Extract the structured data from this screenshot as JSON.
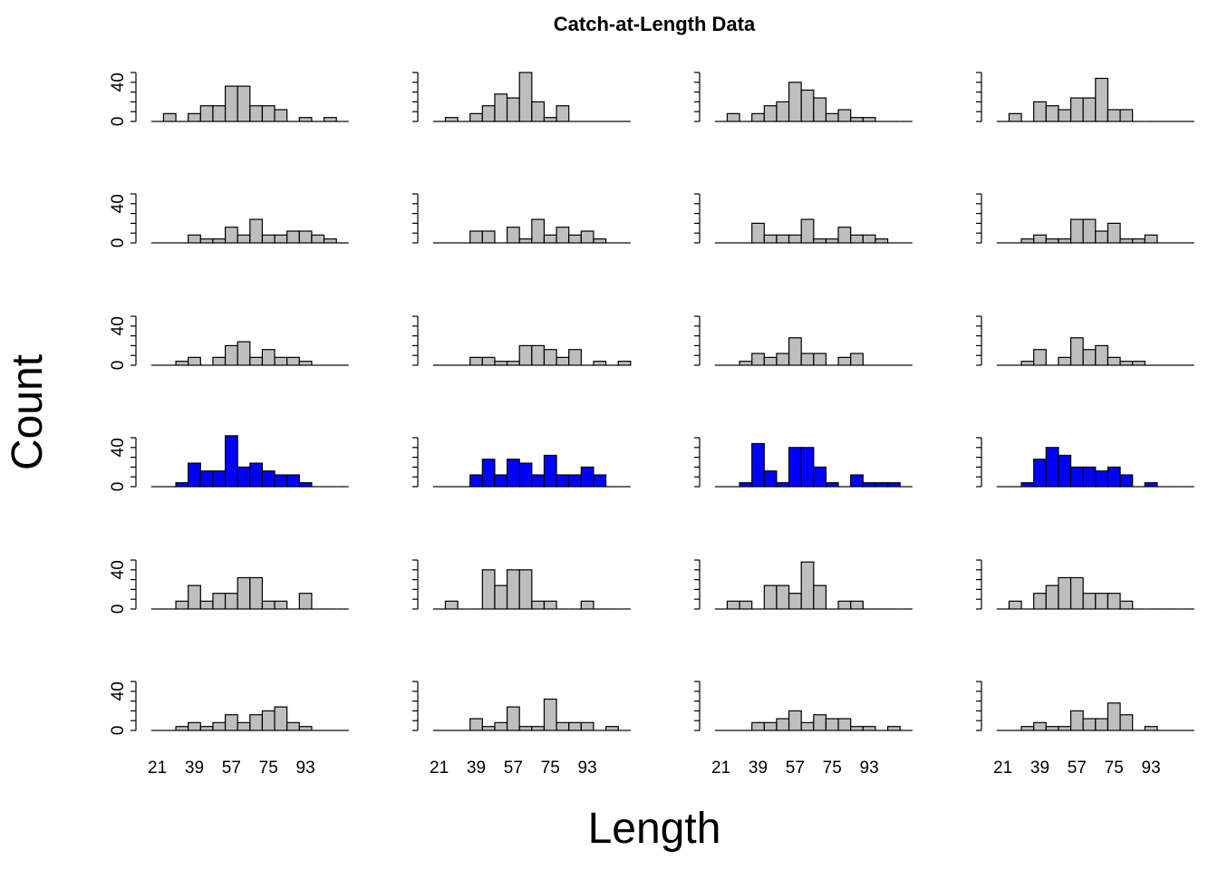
{
  "title": "Catch-at-Length Data",
  "xlabel": "Length",
  "ylabel": "Count",
  "colors": {
    "default_bar": "#bebebe",
    "highlight_bar": "#0000ff",
    "stroke": "#000000"
  },
  "chart_data": {
    "type": "bar",
    "title": "Catch-at-Length Data",
    "xlabel": "Length",
    "ylabel": "Count",
    "layout": {
      "rows": 6,
      "cols": 4
    },
    "highlight_row": 4,
    "categories": [
      15,
      18,
      21,
      24,
      27,
      30,
      33,
      36,
      39,
      42,
      45,
      48,
      51,
      54,
      57,
      60,
      63,
      66,
      69,
      72,
      75,
      78,
      81,
      84,
      87,
      90,
      93,
      96,
      99,
      102,
      105,
      108,
      111
    ],
    "xtick_labels": [
      "21",
      "39",
      "57",
      "75",
      "93"
    ],
    "bin_width": 6,
    "bins_start": 18,
    "bins": [
      21,
      27,
      33,
      39,
      45,
      51,
      57,
      63,
      69,
      75,
      81,
      87,
      93,
      99,
      105,
      111
    ],
    "ytick_labels": [
      "0",
      "40"
    ],
    "ylim": [
      0,
      50
    ],
    "panels": [
      {
        "row": 1,
        "col": 1,
        "values": [
          0,
          8,
          0,
          8,
          16,
          16,
          36,
          36,
          16,
          16,
          12,
          0,
          4,
          0,
          4,
          0
        ]
      },
      {
        "row": 1,
        "col": 2,
        "values": [
          0,
          4,
          0,
          8,
          16,
          28,
          24,
          50,
          20,
          4,
          16,
          0,
          0,
          0,
          0,
          0
        ]
      },
      {
        "row": 1,
        "col": 3,
        "values": [
          0,
          8,
          0,
          8,
          16,
          20,
          40,
          32,
          24,
          8,
          12,
          4,
          4,
          0,
          0,
          0
        ]
      },
      {
        "row": 1,
        "col": 4,
        "values": [
          0,
          8,
          0,
          20,
          16,
          12,
          24,
          24,
          44,
          12,
          12,
          0,
          0,
          0,
          0,
          0
        ]
      },
      {
        "row": 2,
        "col": 1,
        "values": [
          0,
          0,
          0,
          8,
          4,
          4,
          16,
          8,
          24,
          8,
          8,
          12,
          12,
          8,
          4,
          0
        ]
      },
      {
        "row": 2,
        "col": 2,
        "values": [
          0,
          0,
          0,
          12,
          12,
          0,
          16,
          4,
          24,
          8,
          16,
          8,
          12,
          4,
          0,
          0
        ]
      },
      {
        "row": 2,
        "col": 3,
        "values": [
          0,
          0,
          0,
          20,
          8,
          8,
          8,
          24,
          4,
          4,
          16,
          8,
          8,
          4,
          0,
          0
        ]
      },
      {
        "row": 2,
        "col": 4,
        "values": [
          0,
          0,
          4,
          8,
          4,
          4,
          24,
          24,
          12,
          20,
          4,
          4,
          8,
          0,
          0,
          0
        ]
      },
      {
        "row": 3,
        "col": 1,
        "values": [
          0,
          0,
          4,
          8,
          0,
          8,
          20,
          24,
          8,
          16,
          8,
          8,
          4,
          0,
          0,
          0
        ]
      },
      {
        "row": 3,
        "col": 2,
        "values": [
          0,
          0,
          0,
          8,
          8,
          4,
          4,
          20,
          20,
          16,
          8,
          16,
          0,
          4,
          0,
          4
        ]
      },
      {
        "row": 3,
        "col": 3,
        "values": [
          0,
          0,
          4,
          12,
          8,
          12,
          28,
          12,
          12,
          0,
          8,
          12,
          0,
          0,
          0,
          0
        ]
      },
      {
        "row": 3,
        "col": 4,
        "values": [
          0,
          0,
          4,
          16,
          0,
          8,
          28,
          16,
          20,
          8,
          4,
          4,
          0,
          0,
          0,
          0
        ]
      },
      {
        "row": 4,
        "col": 1,
        "values": [
          0,
          0,
          4,
          24,
          16,
          16,
          52,
          20,
          24,
          16,
          12,
          12,
          4,
          0,
          0,
          0
        ]
      },
      {
        "row": 4,
        "col": 2,
        "values": [
          0,
          0,
          0,
          12,
          28,
          12,
          28,
          24,
          12,
          32,
          12,
          12,
          20,
          12,
          0,
          0
        ]
      },
      {
        "row": 4,
        "col": 3,
        "values": [
          0,
          0,
          4,
          44,
          16,
          4,
          40,
          40,
          20,
          4,
          0,
          12,
          4,
          4,
          4,
          0
        ]
      },
      {
        "row": 4,
        "col": 4,
        "values": [
          0,
          0,
          4,
          28,
          40,
          32,
          20,
          20,
          16,
          20,
          12,
          0,
          4,
          0,
          0,
          0
        ]
      },
      {
        "row": 5,
        "col": 1,
        "values": [
          0,
          0,
          8,
          24,
          8,
          16,
          16,
          32,
          32,
          8,
          8,
          0,
          16,
          0,
          0,
          0
        ]
      },
      {
        "row": 5,
        "col": 2,
        "values": [
          0,
          8,
          0,
          0,
          40,
          24,
          40,
          40,
          8,
          8,
          0,
          0,
          8,
          0,
          0,
          0
        ]
      },
      {
        "row": 5,
        "col": 3,
        "values": [
          0,
          8,
          8,
          0,
          24,
          24,
          16,
          48,
          24,
          0,
          8,
          8,
          0,
          0,
          0,
          0
        ]
      },
      {
        "row": 5,
        "col": 4,
        "values": [
          0,
          8,
          0,
          16,
          24,
          32,
          32,
          16,
          16,
          16,
          8,
          0,
          0,
          0,
          0,
          0
        ]
      },
      {
        "row": 6,
        "col": 1,
        "values": [
          0,
          0,
          4,
          8,
          4,
          8,
          16,
          8,
          16,
          20,
          24,
          8,
          4,
          0,
          0,
          0
        ]
      },
      {
        "row": 6,
        "col": 2,
        "values": [
          0,
          0,
          0,
          12,
          4,
          8,
          24,
          4,
          4,
          32,
          8,
          8,
          8,
          0,
          4,
          0
        ]
      },
      {
        "row": 6,
        "col": 3,
        "values": [
          0,
          0,
          0,
          8,
          8,
          12,
          20,
          8,
          16,
          12,
          12,
          4,
          4,
          0,
          4,
          0
        ]
      },
      {
        "row": 6,
        "col": 4,
        "values": [
          0,
          0,
          4,
          8,
          4,
          4,
          20,
          12,
          12,
          28,
          16,
          0,
          4,
          0,
          0,
          0
        ]
      }
    ]
  }
}
